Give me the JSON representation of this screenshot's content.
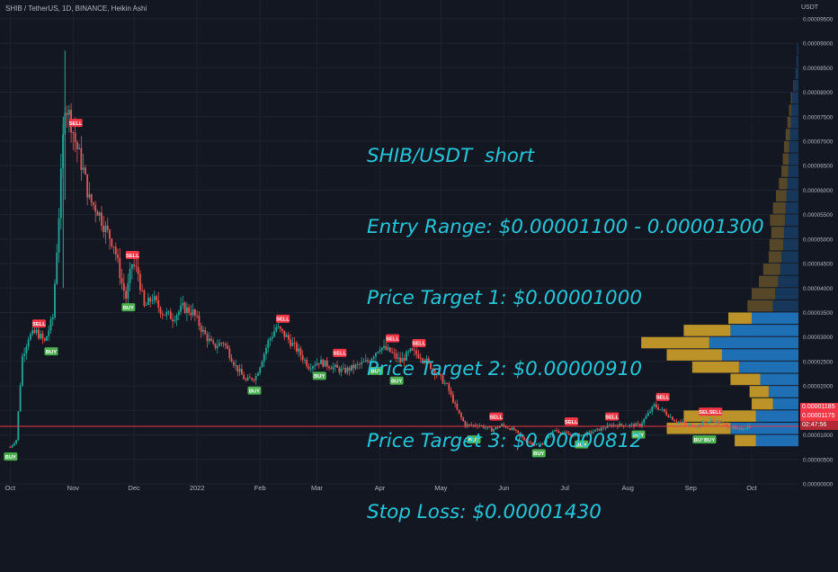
{
  "header": {
    "symbol_title": "SHIB / TetherUS, 1D, BINANCE, Heikin Ashi",
    "currency": "USDT"
  },
  "annotation": {
    "lines": [
      "SHIB/USDT  short",
      "Entry Range: $0.00001100 - 0.00001300",
      "Price Target 1: $0.00001000",
      "Price Target 2: $0.00000910",
      "Price Target 3: $0.00000812",
      "Stop Loss: $0.00001430"
    ]
  },
  "price_labels": {
    "upper": "0.00001185",
    "current": "0.00001175",
    "countdown": "02:47:56"
  },
  "colors": {
    "background": "#131722",
    "grid": "#1e222d",
    "up": "#26a69a",
    "down": "#ef5350",
    "buy_label": "#4caf50",
    "sell_label": "#f23645",
    "profile_up": "#2962ff",
    "profile_buy": "#c9a227",
    "profile_sell": "#1e6fb8",
    "annotation_text": "#26c6da",
    "price_line": "#f23645"
  },
  "chart_data": {
    "type": "candlestick",
    "title": "SHIB / TetherUS, 1D, BINANCE, Heikin Ashi",
    "ylabel": "USDT",
    "y_ticks": [
      "0.00009500",
      "0.00009000",
      "0.00008500",
      "0.00008000",
      "0.00007500",
      "0.00007000",
      "0.00006500",
      "0.00006000",
      "0.00005500",
      "0.00005000",
      "0.00004500",
      "0.00004000",
      "0.00003500",
      "0.00003000",
      "0.00002500",
      "0.00002000",
      "0.00001500",
      "0.00001000",
      "0.00000500",
      "0.00000000"
    ],
    "ylim": [
      0.0,
      9.7e-05
    ],
    "x_ticks": [
      "Oct",
      "Nov",
      "Dec",
      "2022",
      "Feb",
      "Mar",
      "Apr",
      "May",
      "Jun",
      "Jul",
      "Aug",
      "Sep",
      "Oct"
    ],
    "x_tick_dates": [
      "2021-10-01",
      "2021-11-01",
      "2021-12-01",
      "2022-01-01",
      "2022-02-01",
      "2022-03-01",
      "2022-04-01",
      "2022-05-01",
      "2022-06-01",
      "2022-07-01",
      "2022-08-01",
      "2022-09-01",
      "2022-10-01"
    ],
    "current_price": 1.175e-05,
    "price_path": [
      [
        "2021-10-01",
        7.5e-06
      ],
      [
        "2021-10-04",
        9e-06
      ],
      [
        "2021-10-07",
        2.6e-05
      ],
      [
        "2021-10-10",
        3e-05
      ],
      [
        "2021-10-14",
        3.1e-05
      ],
      [
        "2021-10-18",
        2.9e-05
      ],
      [
        "2021-10-22",
        3.4e-05
      ],
      [
        "2021-10-25",
        5.5e-05
      ],
      [
        "2021-10-28",
        7.8e-05
      ],
      [
        "2021-10-31",
        7.4e-05
      ],
      [
        "2021-11-02",
        7e-05
      ],
      [
        "2021-11-06",
        6.4e-05
      ],
      [
        "2021-11-09",
        5.8e-05
      ],
      [
        "2021-11-13",
        5.6e-05
      ],
      [
        "2021-11-17",
        5.2e-05
      ],
      [
        "2021-11-21",
        4.9e-05
      ],
      [
        "2021-11-25",
        4.1e-05
      ],
      [
        "2021-11-27",
        3.8e-05
      ],
      [
        "2021-11-30",
        4.5e-05
      ],
      [
        "2021-12-03",
        4.3e-05
      ],
      [
        "2021-12-06",
        3.6e-05
      ],
      [
        "2021-12-10",
        3.8e-05
      ],
      [
        "2021-12-15",
        3.5e-05
      ],
      [
        "2021-12-20",
        3.4e-05
      ],
      [
        "2021-12-25",
        3.6e-05
      ],
      [
        "2021-12-30",
        3.5e-05
      ],
      [
        "2022-01-04",
        3.1e-05
      ],
      [
        "2022-01-09",
        2.8e-05
      ],
      [
        "2022-01-14",
        2.9e-05
      ],
      [
        "2022-01-20",
        2.4e-05
      ],
      [
        "2022-01-25",
        2.1e-05
      ],
      [
        "2022-01-30",
        2.2e-05
      ],
      [
        "2022-02-05",
        2.9e-05
      ],
      [
        "2022-02-09",
        3.2e-05
      ],
      [
        "2022-02-14",
        3e-05
      ],
      [
        "2022-02-20",
        2.7e-05
      ],
      [
        "2022-02-25",
        2.4e-05
      ],
      [
        "2022-03-02",
        2.5e-05
      ],
      [
        "2022-03-08",
        2.4e-05
      ],
      [
        "2022-03-14",
        2.3e-05
      ],
      [
        "2022-03-20",
        2.4e-05
      ],
      [
        "2022-03-26",
        2.5e-05
      ],
      [
        "2022-04-01",
        2.8e-05
      ],
      [
        "2022-04-06",
        2.7e-05
      ],
      [
        "2022-04-11",
        2.5e-05
      ],
      [
        "2022-04-16",
        2.7e-05
      ],
      [
        "2022-04-22",
        2.6e-05
      ],
      [
        "2022-04-28",
        2.3e-05
      ],
      [
        "2022-05-04",
        2e-05
      ],
      [
        "2022-05-09",
        1.5e-05
      ],
      [
        "2022-05-13",
        1.2e-05
      ],
      [
        "2022-05-20",
        1.2e-05
      ],
      [
        "2022-05-26",
        1.1e-05
      ],
      [
        "2022-05-31",
        1.2e-05
      ],
      [
        "2022-06-06",
        1.1e-05
      ],
      [
        "2022-06-11",
        9e-06
      ],
      [
        "2022-06-16",
        8e-06
      ],
      [
        "2022-06-20",
        8.2e-06
      ],
      [
        "2022-06-26",
        1.1e-05
      ],
      [
        "2022-07-03",
        1e-05
      ],
      [
        "2022-07-10",
        1e-05
      ],
      [
        "2022-07-17",
        1.1e-05
      ],
      [
        "2022-07-24",
        1.2e-05
      ],
      [
        "2022-07-31",
        1.2e-05
      ],
      [
        "2022-08-07",
        1.2e-05
      ],
      [
        "2022-08-14",
        1.6e-05
      ],
      [
        "2022-08-18",
        1.5e-05
      ],
      [
        "2022-08-24",
        1.3e-05
      ],
      [
        "2022-08-31",
        1.2e-05
      ],
      [
        "2022-09-05",
        1.2e-05
      ],
      [
        "2022-09-12",
        1.3e-05
      ],
      [
        "2022-09-18",
        1.2e-05
      ],
      [
        "2022-09-24",
        1.1e-05
      ],
      [
        "2022-09-30",
        1.18e-05
      ]
    ],
    "signals": [
      {
        "date": "2021-10-01",
        "price": 7.5e-06,
        "label": "BUY"
      },
      {
        "date": "2021-10-15",
        "price": 3.1e-05,
        "label": "SELL"
      },
      {
        "date": "2021-10-21",
        "price": 2.9e-05,
        "label": "BUY"
      },
      {
        "date": "2021-11-02",
        "price": 7.2e-05,
        "label": "SELL"
      },
      {
        "date": "2021-11-30",
        "price": 4.5e-05,
        "label": "SELL"
      },
      {
        "date": "2021-11-28",
        "price": 3.8e-05,
        "label": "BUY"
      },
      {
        "date": "2022-01-29",
        "price": 2.1e-05,
        "label": "BUY"
      },
      {
        "date": "2022-02-12",
        "price": 3.2e-05,
        "label": "SELL"
      },
      {
        "date": "2022-03-02",
        "price": 2.4e-05,
        "label": "BUY"
      },
      {
        "date": "2022-03-12",
        "price": 2.5e-05,
        "label": "SELL"
      },
      {
        "date": "2022-03-30",
        "price": 2.5e-05,
        "label": "BUY"
      },
      {
        "date": "2022-04-07",
        "price": 2.8e-05,
        "label": "SELL"
      },
      {
        "date": "2022-04-09",
        "price": 2.3e-05,
        "label": "BUY"
      },
      {
        "date": "2022-04-20",
        "price": 2.7e-05,
        "label": "SELL"
      },
      {
        "date": "2022-05-17",
        "price": 1.1e-05,
        "label": "BUY"
      },
      {
        "date": "2022-05-28",
        "price": 1.2e-05,
        "label": "SELL"
      },
      {
        "date": "2022-06-18",
        "price": 8.2e-06,
        "label": "BUY"
      },
      {
        "date": "2022-07-04",
        "price": 1.1e-05,
        "label": "SELL"
      },
      {
        "date": "2022-07-09",
        "price": 1e-05,
        "label": "BUY"
      },
      {
        "date": "2022-07-24",
        "price": 1.2e-05,
        "label": "SELL"
      },
      {
        "date": "2022-08-06",
        "price": 1.2e-05,
        "label": "BUY"
      },
      {
        "date": "2022-08-18",
        "price": 1.6e-05,
        "label": "SELL"
      },
      {
        "date": "2022-09-05",
        "price": 1.1e-05,
        "label": "BUY"
      },
      {
        "date": "2022-09-08",
        "price": 1.3e-05,
        "label": "SELL"
      },
      {
        "date": "2022-09-13",
        "price": 1.3e-05,
        "label": "SELL"
      },
      {
        "date": "2022-09-10",
        "price": 1.1e-05,
        "label": "BUY"
      }
    ],
    "volume_profile": [
      {
        "price": 8.75e-05,
        "up": 0.3,
        "down": 0
      },
      {
        "price": 8.5e-05,
        "up": 0.5,
        "down": 0
      },
      {
        "price": 8.25e-05,
        "up": 0.7,
        "down": 0
      },
      {
        "price": 8e-05,
        "up": 1.0,
        "down": 0.2
      },
      {
        "price": 7.75e-05,
        "up": 1.5,
        "down": 0.3
      },
      {
        "price": 7.5e-05,
        "up": 1.7,
        "down": 0.5
      },
      {
        "price": 7.25e-05,
        "up": 1.8,
        "down": 0.8
      },
      {
        "price": 7e-05,
        "up": 2.0,
        "down": 1.0
      },
      {
        "price": 6.75e-05,
        "up": 2.2,
        "down": 1.2
      },
      {
        "price": 6.5e-05,
        "up": 2.3,
        "down": 1.4
      },
      {
        "price": 6.25e-05,
        "up": 2.4,
        "down": 1.6
      },
      {
        "price": 6e-05,
        "up": 2.6,
        "down": 2.0
      },
      {
        "price": 5.75e-05,
        "up": 2.8,
        "down": 2.5
      },
      {
        "price": 5.5e-05,
        "up": 3.0,
        "down": 3.0
      },
      {
        "price": 5.25e-05,
        "up": 3.2,
        "down": 3.5
      },
      {
        "price": 5e-05,
        "up": 3.4,
        "down": 3.0
      },
      {
        "price": 4.75e-05,
        "up": 3.6,
        "down": 3.2
      },
      {
        "price": 4.5e-05,
        "up": 4.0,
        "down": 3.0
      },
      {
        "price": 4.25e-05,
        "up": 4.3,
        "down": 4.0
      },
      {
        "price": 4e-05,
        "up": 4.8,
        "down": 4.5
      },
      {
        "price": 3.75e-05,
        "up": 5.5,
        "down": 5.5
      },
      {
        "price": 3.5e-05,
        "up": 6.0,
        "down": 6.0
      },
      {
        "price": 3.25e-05,
        "up": 11.0,
        "down": 5.5
      },
      {
        "price": 3e-05,
        "up": 16.0,
        "down": 11.0
      },
      {
        "price": 2.75e-05,
        "up": 21.0,
        "down": 16.0
      },
      {
        "price": 2.5e-05,
        "up": 18.0,
        "down": 13.0
      },
      {
        "price": 2.25e-05,
        "up": 14.0,
        "down": 11.0
      },
      {
        "price": 2e-05,
        "up": 9.0,
        "down": 7.0
      },
      {
        "price": 1.75e-05,
        "up": 7.0,
        "down": 4.5
      },
      {
        "price": 1.5e-05,
        "up": 6.0,
        "down": 5.0
      },
      {
        "price": 1.25e-05,
        "up": 10.0,
        "down": 17.0
      },
      {
        "price": 1e-05,
        "up": 16.0,
        "down": 15.0
      },
      {
        "price": 7.5e-06,
        "up": 10.0,
        "down": 5.0
      }
    ]
  }
}
